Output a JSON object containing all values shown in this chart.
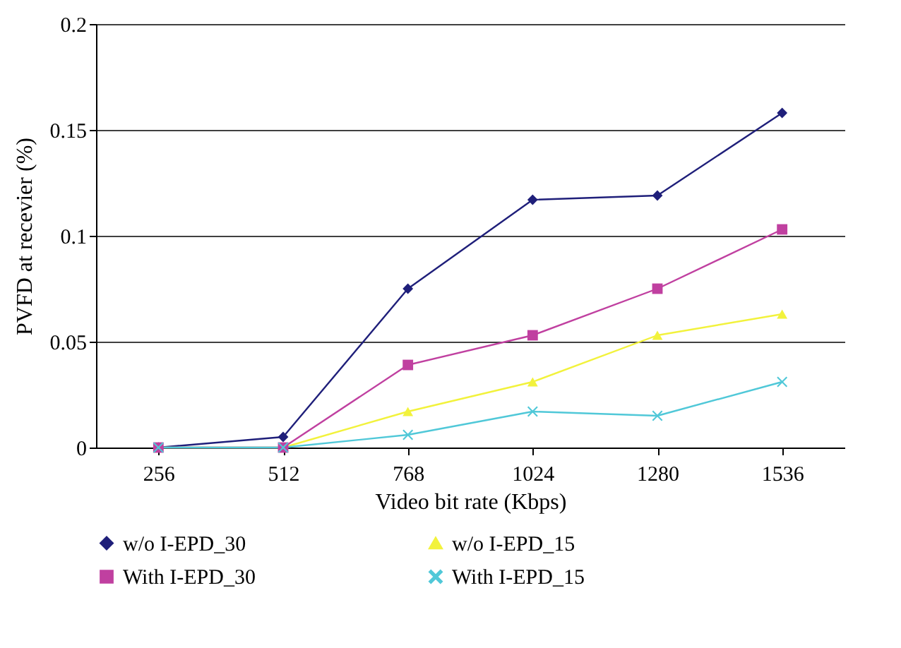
{
  "chart_data": {
    "type": "line",
    "xlabel": "Video bit rate (Kbps)",
    "ylabel": "PVFD at recevier (%)",
    "categories": [
      "256",
      "512",
      "768",
      "1024",
      "1280",
      "1536"
    ],
    "series": [
      {
        "name": "w/o I-EPD_30",
        "color": "#1f1f7a",
        "marker": "diamond",
        "values": [
          0,
          0.005,
          0.075,
          0.117,
          0.119,
          0.158
        ]
      },
      {
        "name": "w/o I-EPD_15",
        "color": "#f2f23c",
        "marker": "triangle",
        "values": [
          0,
          0,
          0.017,
          0.031,
          0.053,
          0.063
        ]
      },
      {
        "name": "With I-EPD_30",
        "color": "#c040a0",
        "marker": "square",
        "values": [
          0,
          0,
          0.039,
          0.053,
          0.075,
          0.103
        ]
      },
      {
        "name": "With I-EPD_15",
        "color": "#50c8d8",
        "marker": "cross",
        "values": [
          0,
          0,
          0.006,
          0.017,
          0.015,
          0.031
        ]
      }
    ],
    "ylim": [
      0,
      0.2
    ],
    "yticks": [
      0,
      0.05,
      0.1,
      0.15,
      0.2
    ],
    "grid": "y",
    "legend": "bottom"
  }
}
